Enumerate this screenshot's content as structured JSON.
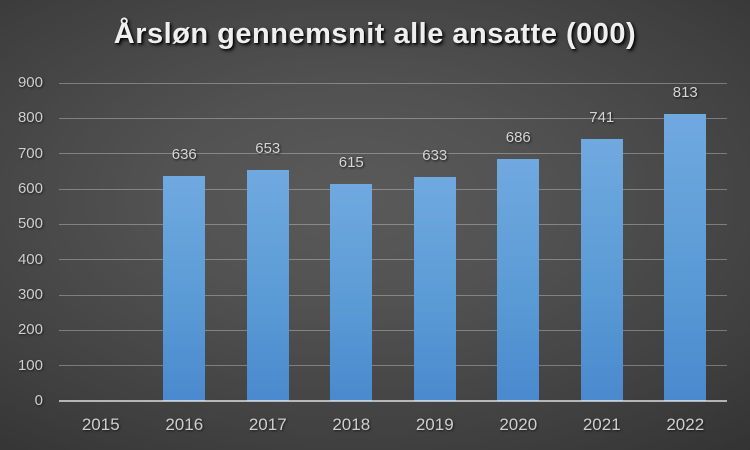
{
  "colors": {
    "bar_fill": "#5b9bd5",
    "bar_fill_light": "#70a9e0",
    "bar_fill_dark": "#4a89ce",
    "background_center": "#5a5a5a",
    "background_edge": "#232323",
    "gridline": "rgba(255,255,255,0.30)",
    "axis_line": "rgba(255,255,255,0.62)",
    "title_text": "#efefef",
    "label_text": "#cfcfcf"
  },
  "chart_data": {
    "type": "bar",
    "title": "Årsløn gennemsnit alle ansatte (000)",
    "xlabel": "",
    "ylabel": "",
    "categories": [
      "2015",
      "2016",
      "2017",
      "2018",
      "2019",
      "2020",
      "2021",
      "2022"
    ],
    "values": [
      null,
      636,
      653,
      615,
      633,
      686,
      741,
      813
    ],
    "data_labels": [
      "",
      "636",
      "653",
      "615",
      "633",
      "686",
      "741",
      "813"
    ],
    "ylim": [
      0,
      900
    ],
    "yticks": [
      0,
      100,
      200,
      300,
      400,
      500,
      600,
      700,
      800,
      900
    ],
    "grid": true,
    "legend": "none"
  }
}
